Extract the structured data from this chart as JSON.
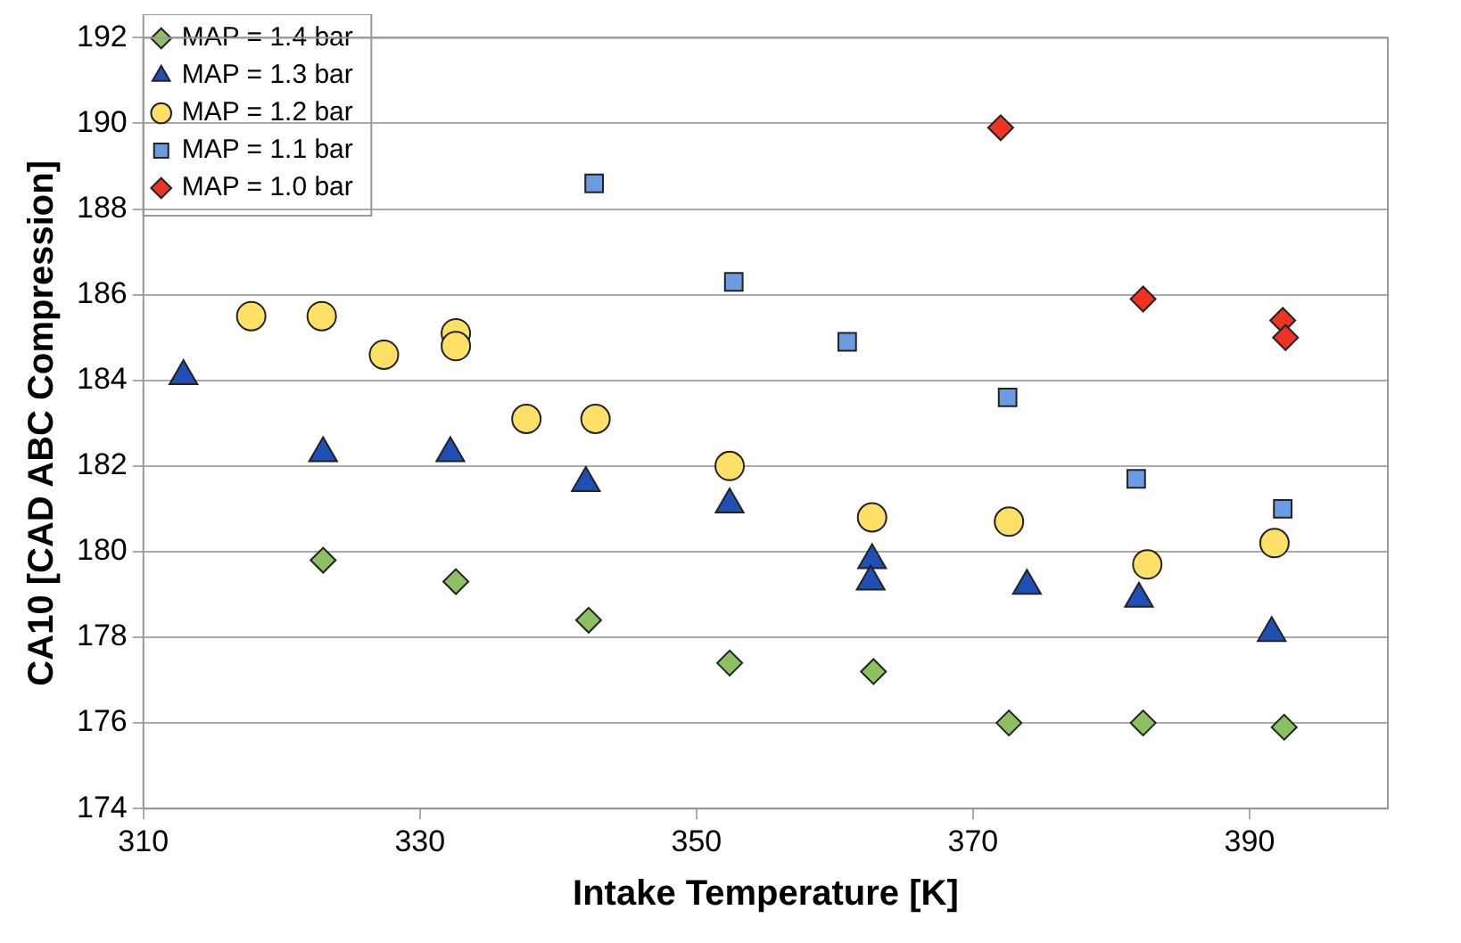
{
  "chart_data": {
    "type": "scatter",
    "xlabel": "Intake Temperature [K]",
    "ylabel": "CA10 [CAD ABC Compression]",
    "xlim": [
      310,
      400
    ],
    "xticks": [
      310,
      330,
      350,
      370,
      390
    ],
    "ylim": [
      174,
      192
    ],
    "yticks": [
      174,
      176,
      178,
      180,
      182,
      184,
      186,
      188,
      190,
      192
    ],
    "grid": "y",
    "legend": "top left",
    "series": [
      {
        "name": "MAP = 1.4 bar",
        "color": "#8cc063",
        "marker": "diamond",
        "x": [
          323,
          332.6,
          342.2,
          352.4,
          362.8,
          372.6,
          382.3,
          392.5
        ],
        "values": [
          179.8,
          179.3,
          178.4,
          177.4,
          177.2,
          176.0,
          176.0,
          175.9
        ]
      },
      {
        "name": "MAP = 1.3 bar",
        "color": "#1f4fb4",
        "marker": "triangle",
        "x": [
          312.9,
          323,
          332.2,
          342,
          352.4,
          362.7,
          362.6,
          373.9,
          382,
          391.6
        ],
        "values": [
          184.1,
          182.3,
          182.3,
          181.6,
          181.1,
          179.8,
          179.3,
          179.2,
          178.9,
          178.1
        ]
      },
      {
        "name": "MAP = 1.2 bar",
        "color": "#ffe066",
        "marker": "circle",
        "x": [
          317.8,
          322.9,
          327.4,
          332.6,
          332.6,
          337.7,
          342.7,
          352.4,
          362.7,
          372.6,
          382.6,
          391.8
        ],
        "values": [
          185.5,
          185.5,
          184.6,
          185.1,
          184.8,
          183.1,
          183.1,
          182.0,
          180.8,
          180.7,
          179.7,
          180.2
        ]
      },
      {
        "name": "MAP = 1.1 bar",
        "color": "#6b9be0",
        "marker": "square",
        "x": [
          342.6,
          352.7,
          360.9,
          372.5,
          381.8,
          392.4
        ],
        "values": [
          188.6,
          186.3,
          184.9,
          183.6,
          181.7,
          181.0
        ]
      },
      {
        "name": "MAP = 1.0 bar",
        "color": "#ee3322",
        "marker": "diamond",
        "x": [
          372,
          382.3,
          392.4,
          392.6
        ],
        "values": [
          189.9,
          185.9,
          185.4,
          185.0
        ]
      }
    ]
  }
}
